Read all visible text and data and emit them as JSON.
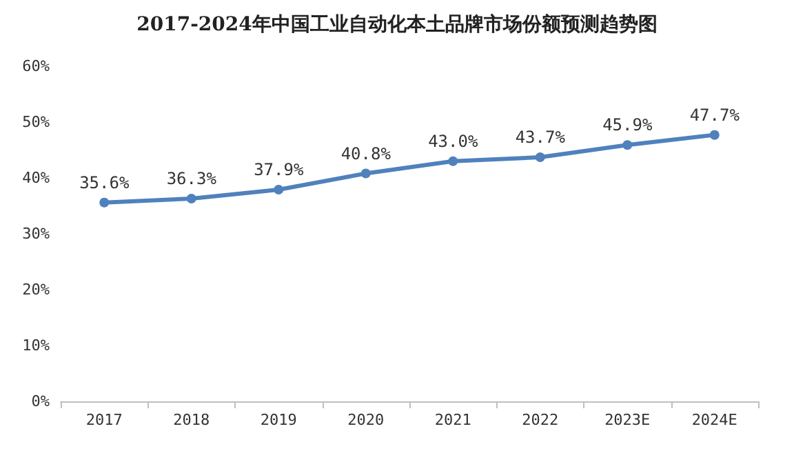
{
  "chart_data": {
    "type": "line",
    "title": "2017-2024年中国工业自动化本土品牌市场份额预测趋势图",
    "categories": [
      "2017",
      "2018",
      "2019",
      "2020",
      "2021",
      "2022",
      "2023E",
      "2024E"
    ],
    "series": [
      {
        "color": "#4f81bd",
        "values": [
          35.6,
          36.3,
          37.9,
          40.8,
          43.0,
          43.7,
          45.9,
          47.7
        ],
        "value_labels": [
          "35.6%",
          "36.3%",
          "37.9%",
          "40.8%",
          "43.0%",
          "43.7%",
          "45.9%",
          "47.7%"
        ]
      }
    ],
    "ylim": [
      0,
      60
    ],
    "yticks": [
      {
        "value": 0,
        "label": "0%"
      },
      {
        "value": 10,
        "label": "10%"
      },
      {
        "value": 20,
        "label": "20%"
      },
      {
        "value": 30,
        "label": "30%"
      },
      {
        "value": 40,
        "label": "40%"
      },
      {
        "value": 50,
        "label": "50%"
      },
      {
        "value": 60,
        "label": "60%"
      }
    ],
    "marker": "circle",
    "grid": false
  }
}
